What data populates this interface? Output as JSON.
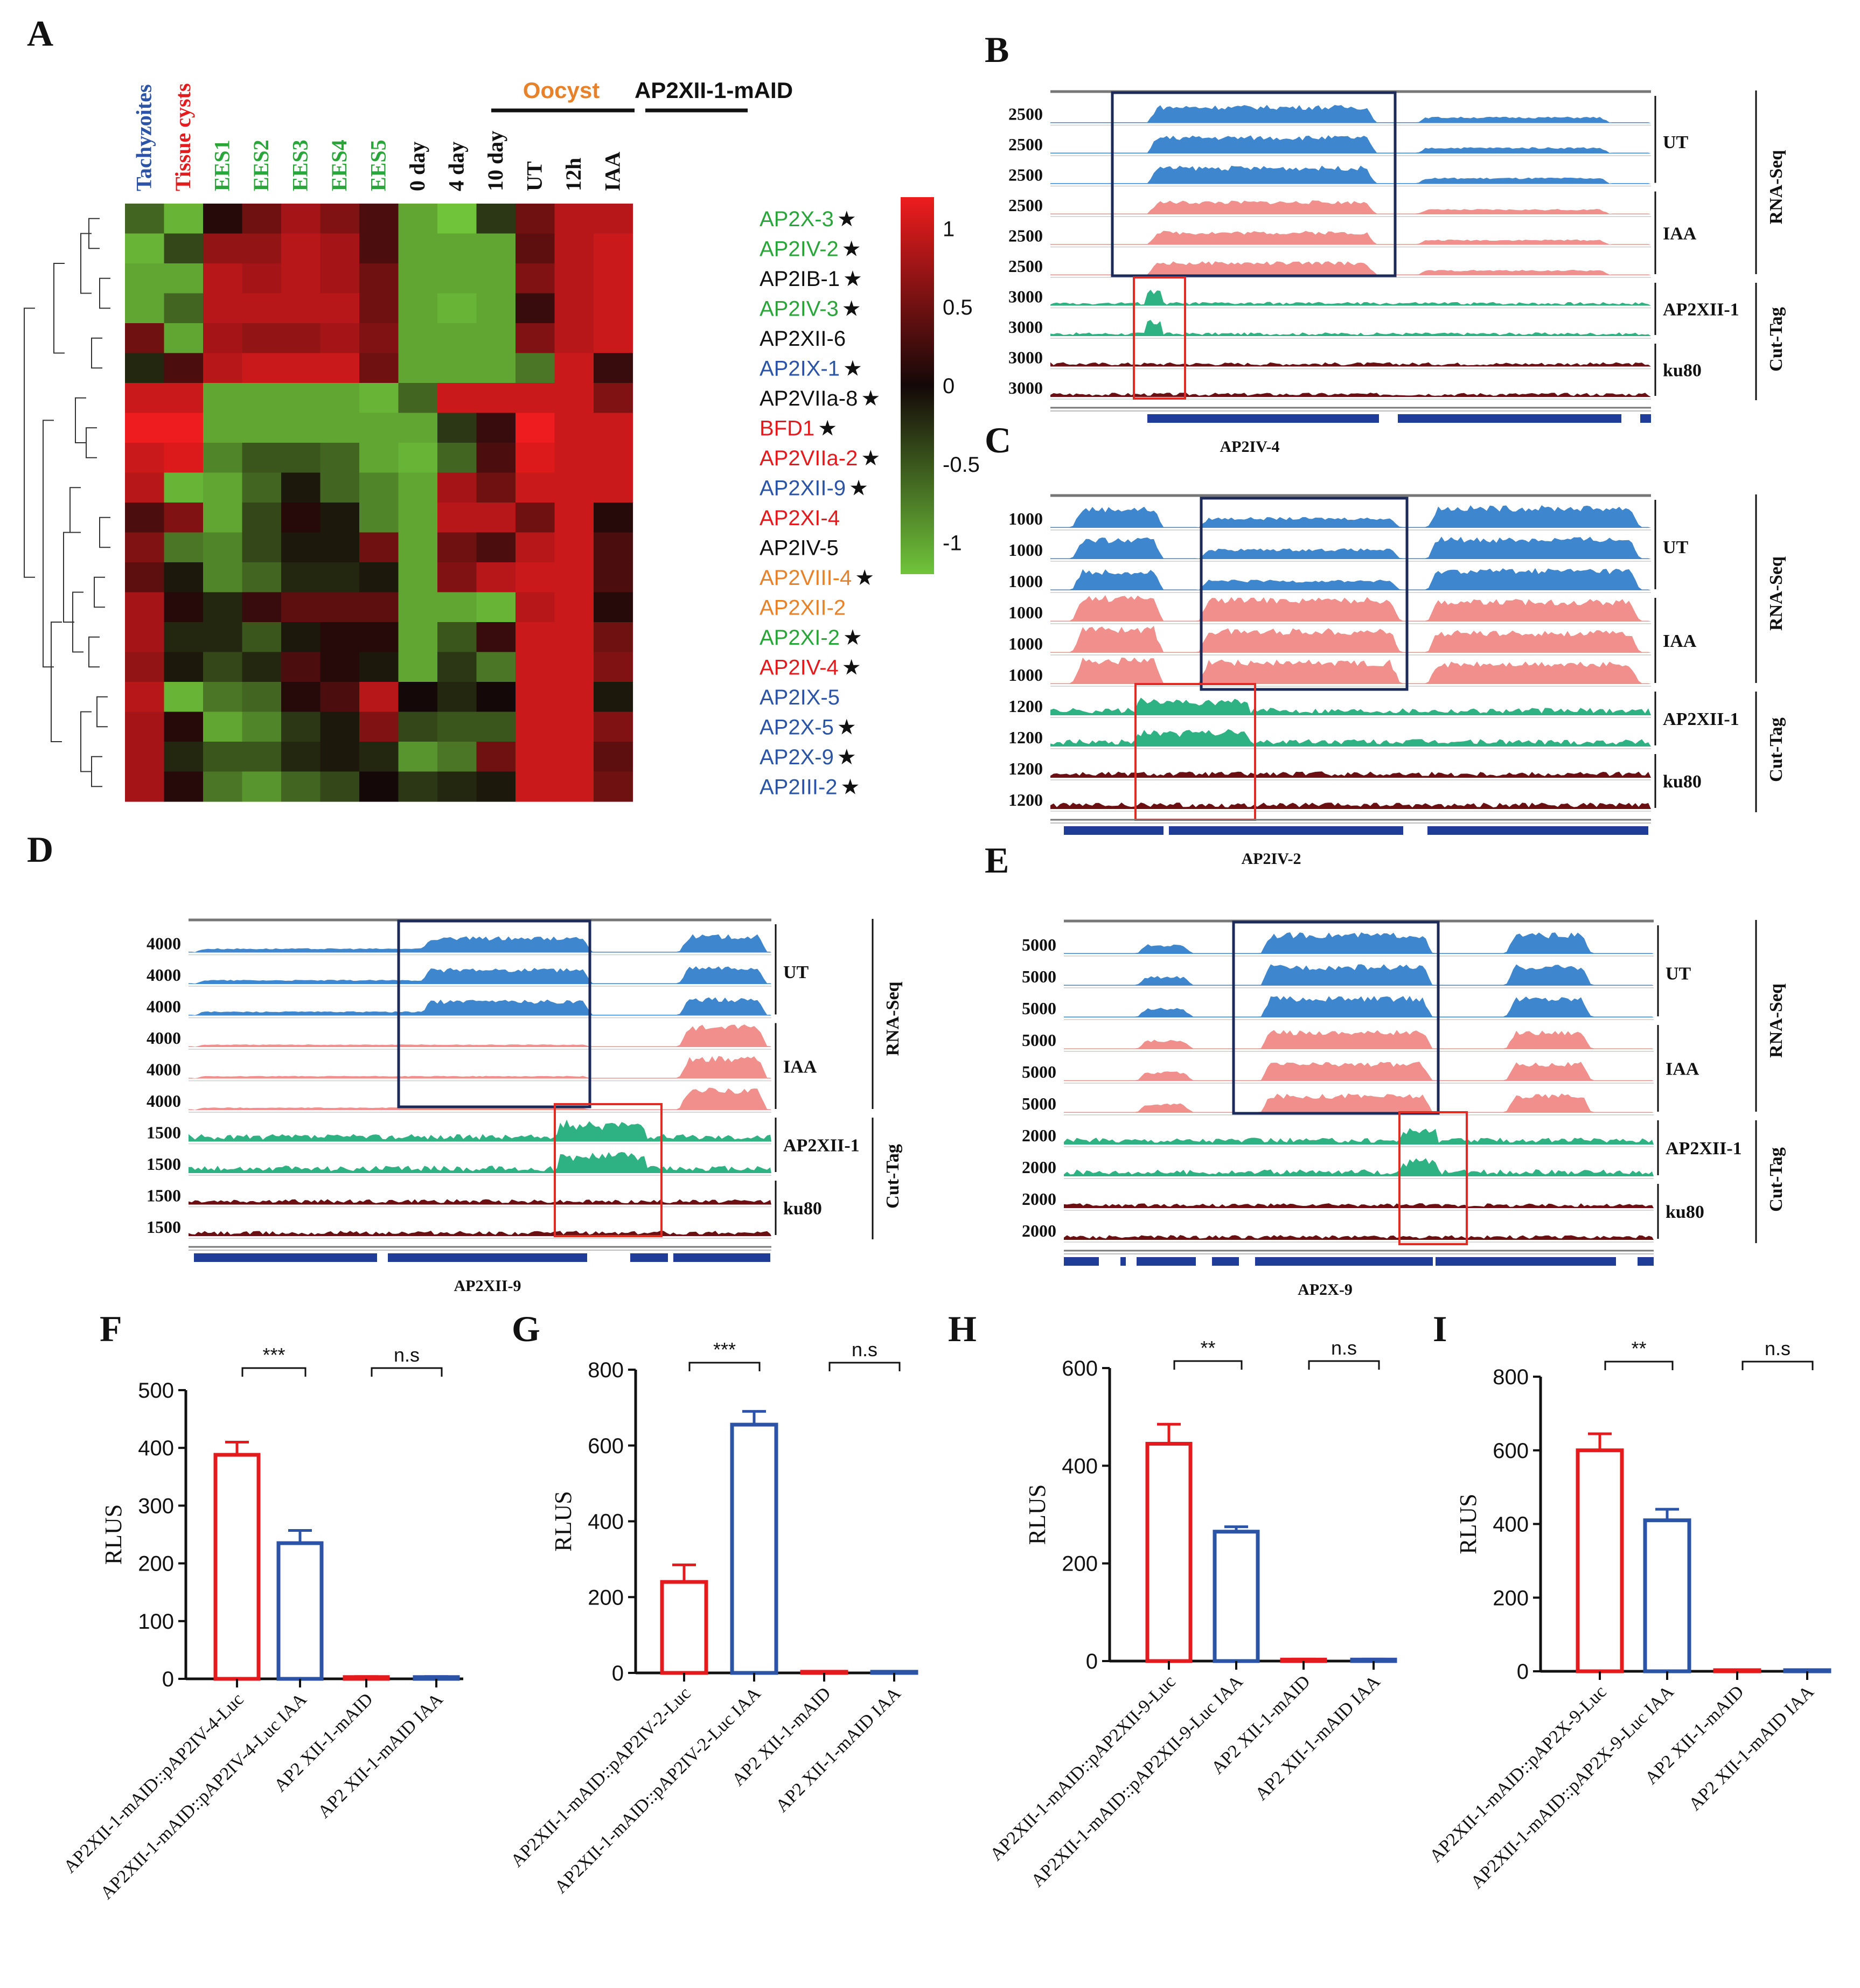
{
  "colors": {
    "red": "#e41a1c",
    "blue": "#2b54a6",
    "green": "#2aa53a",
    "orange": "#e8822a",
    "black": "#111111",
    "rna_ut": "#3e86cd",
    "rna_iaa": "#f08f8c",
    "cut_ap2": "#2fb283",
    "cut_ku80": "#6b0f13",
    "gene": "#1e3c98",
    "box_dark": "#1c2a5a",
    "box_red": "#e02c24"
  },
  "chart_data": [
    {
      "panel": "A",
      "type": "heatmap",
      "column_groups": [
        {
          "label": "Oocyst",
          "color": "#e8822a"
        },
        {
          "label": "AP2XII-1-mAID",
          "color": "#111111"
        }
      ],
      "columns": [
        {
          "label": "Tachyzoites",
          "color": "#2b54a6"
        },
        {
          "label": "Tissue cysts",
          "color": "#e41a1c"
        },
        {
          "label": "EES1",
          "color": "#2aa53a"
        },
        {
          "label": "EES2",
          "color": "#2aa53a"
        },
        {
          "label": "EES3",
          "color": "#2aa53a"
        },
        {
          "label": "EES4",
          "color": "#2aa53a"
        },
        {
          "label": "EES5",
          "color": "#2aa53a"
        },
        {
          "label": "0 day",
          "color": "#111111"
        },
        {
          "label": "4 day",
          "color": "#111111"
        },
        {
          "label": "10 day",
          "color": "#111111"
        },
        {
          "label": "UT",
          "color": "#111111"
        },
        {
          "label": "12h",
          "color": "#111111"
        },
        {
          "label": "IAA",
          "color": "#111111"
        }
      ],
      "rows": [
        {
          "label": "AP2X-3",
          "star": "★",
          "color": "#2aa53a",
          "values": [
            -0.6,
            -1.1,
            0.1,
            0.5,
            0.8,
            0.6,
            0.3,
            -1.0,
            -1.2,
            -0.3,
            0.5,
            0.9,
            0.9
          ]
        },
        {
          "label": "AP2IV-2",
          "star": "★",
          "color": "#2aa53a",
          "values": [
            -1.1,
            -0.4,
            0.7,
            0.7,
            0.9,
            0.8,
            0.3,
            -1.0,
            -1.0,
            -1.0,
            0.4,
            0.9,
            1.0
          ]
        },
        {
          "label": "AP2IB-1",
          "star": "★",
          "color": "#111111",
          "values": [
            -1.0,
            -1.0,
            0.9,
            0.8,
            0.9,
            0.8,
            0.5,
            -1.0,
            -1.0,
            -1.0,
            0.6,
            0.9,
            1.0
          ]
        },
        {
          "label": "AP2IV-3",
          "star": "★",
          "color": "#2aa53a",
          "values": [
            -1.0,
            -0.6,
            0.9,
            0.9,
            0.9,
            0.9,
            0.5,
            -1.0,
            -1.1,
            -1.0,
            0.2,
            0.9,
            1.0
          ]
        },
        {
          "label": "AP2XII-6",
          "star": "",
          "color": "#111111",
          "values": [
            0.5,
            -1.0,
            0.8,
            0.7,
            0.7,
            0.8,
            0.6,
            -1.0,
            -1.0,
            -1.0,
            0.6,
            0.9,
            1.0
          ]
        },
        {
          "label": "AP2IX-1",
          "star": "★",
          "color": "#2b54a6",
          "values": [
            -0.2,
            0.3,
            0.9,
            1.0,
            1.0,
            1.0,
            0.5,
            -1.0,
            -1.0,
            -1.0,
            -0.7,
            1.0,
            0.2
          ]
        },
        {
          "label": "AP2VIIa-8",
          "star": "★",
          "color": "#111111",
          "values": [
            1.0,
            1.0,
            -1.0,
            -1.0,
            -1.0,
            -1.0,
            -1.1,
            -0.6,
            1.0,
            1.0,
            1.0,
            1.0,
            0.6
          ]
        },
        {
          "label": "BFD1",
          "star": "★",
          "color": "#e41a1c",
          "values": [
            1.2,
            1.2,
            -1.0,
            -1.0,
            -1.0,
            -1.0,
            -1.0,
            -1.0,
            -0.3,
            0.2,
            1.2,
            1.0,
            1.0
          ]
        },
        {
          "label": "AP2VIIa-2",
          "star": "★",
          "color": "#e41a1c",
          "values": [
            1.0,
            1.1,
            -0.8,
            -0.5,
            -0.5,
            -0.6,
            -1.0,
            -1.1,
            -0.6,
            0.3,
            1.1,
            1.0,
            1.0
          ]
        },
        {
          "label": "AP2XII-9",
          "star": "★",
          "color": "#2b54a6",
          "values": [
            0.9,
            -1.1,
            -1.0,
            -0.6,
            -0.1,
            -0.6,
            -0.8,
            -1.0,
            0.8,
            0.5,
            1.0,
            1.0,
            1.0
          ]
        },
        {
          "label": "AP2XI-4",
          "star": "",
          "color": "#e41a1c",
          "values": [
            0.3,
            0.6,
            -1.0,
            -0.4,
            0.1,
            -0.1,
            -0.8,
            -1.0,
            0.9,
            0.9,
            0.5,
            1.0,
            0.1
          ]
        },
        {
          "label": "AP2IV-5",
          "star": "",
          "color": "#111111",
          "values": [
            0.6,
            -0.7,
            -0.8,
            -0.4,
            -0.1,
            -0.1,
            0.5,
            -1.0,
            0.5,
            0.3,
            0.9,
            1.0,
            0.3
          ]
        },
        {
          "label": "AP2VIII-4",
          "star": "★",
          "color": "#e8822a",
          "values": [
            0.4,
            -0.1,
            -0.8,
            -0.6,
            -0.2,
            -0.2,
            -0.1,
            -1.0,
            0.6,
            0.9,
            1.0,
            1.0,
            0.3
          ]
        },
        {
          "label": "AP2XII-2",
          "star": "",
          "color": "#e8822a",
          "values": [
            0.8,
            0.1,
            -0.2,
            0.2,
            0.4,
            0.4,
            0.4,
            -1.0,
            -1.0,
            -1.1,
            0.9,
            1.0,
            0.1
          ]
        },
        {
          "label": "AP2XI-2",
          "star": "★",
          "color": "#2aa53a",
          "values": [
            0.8,
            -0.2,
            -0.2,
            -0.5,
            -0.1,
            0.1,
            0.1,
            -1.0,
            -0.5,
            0.2,
            1.0,
            1.0,
            0.5
          ]
        },
        {
          "label": "AP2IV-4",
          "star": "★",
          "color": "#e41a1c",
          "values": [
            0.7,
            -0.1,
            -0.4,
            -0.2,
            0.3,
            0.1,
            -0.1,
            -1.0,
            -0.3,
            -0.7,
            1.0,
            1.0,
            0.6
          ]
        },
        {
          "label": "AP2IX-5",
          "star": "",
          "color": "#2b54a6",
          "values": [
            0.9,
            -1.1,
            -0.7,
            -0.6,
            0.1,
            0.3,
            0.9,
            0.0,
            -0.2,
            0.0,
            1.0,
            1.0,
            -0.1
          ]
        },
        {
          "label": "AP2X-5",
          "star": "★",
          "color": "#2b54a6",
          "values": [
            0.8,
            0.1,
            -1.0,
            -0.8,
            -0.3,
            -0.1,
            0.6,
            -0.4,
            -0.5,
            -0.5,
            1.0,
            1.0,
            0.6
          ]
        },
        {
          "label": "AP2X-9",
          "star": "★",
          "color": "#2b54a6",
          "values": [
            0.8,
            -0.2,
            -0.5,
            -0.5,
            -0.2,
            -0.1,
            -0.2,
            -0.9,
            -0.7,
            0.5,
            1.0,
            1.0,
            0.4
          ]
        },
        {
          "label": "AP2III-2",
          "star": "★",
          "color": "#2b54a6",
          "values": [
            0.8,
            0.1,
            -0.7,
            -0.9,
            -0.6,
            -0.4,
            0.0,
            -0.3,
            -0.2,
            -0.1,
            1.0,
            1.0,
            0.5
          ]
        }
      ],
      "scale_min": -1.2,
      "scale_max": 1.2,
      "legend_ticks": [
        "1",
        "0.5",
        "0",
        "-0.5",
        "-1"
      ],
      "legend_values": [
        1,
        0.5,
        0,
        -0.5,
        -1
      ]
    },
    {
      "panel": "B",
      "type": "area",
      "gene": "AP2IV-4",
      "rna_scales": [
        "2500",
        "2500",
        "2500",
        "2500",
        "2500",
        "2500"
      ],
      "cut_scales": [
        "3000",
        "3000",
        "3000",
        "3000"
      ],
      "groups": {
        "ut": "UT",
        "iaa": "IAA",
        "ap2": "AP2XII-1",
        "ku80": "ku80",
        "rna": "RNA-Seq",
        "cut": "Cut-Tag"
      }
    },
    {
      "panel": "C",
      "type": "area",
      "gene": "AP2IV-2",
      "rna_scales": [
        "1000",
        "1000",
        "1000",
        "1000",
        "1000",
        "1000"
      ],
      "cut_scales": [
        "1200",
        "1200",
        "1200",
        "1200"
      ],
      "groups": {
        "ut": "UT",
        "iaa": "IAA",
        "ap2": "AP2XII-1",
        "ku80": "ku80",
        "rna": "RNA-Seq",
        "cut": "Cut-Tag"
      }
    },
    {
      "panel": "D",
      "type": "area",
      "gene": "AP2XII-9",
      "rna_scales": [
        "4000",
        "4000",
        "4000",
        "4000",
        "4000",
        "4000"
      ],
      "cut_scales": [
        "1500",
        "1500",
        "1500",
        "1500"
      ],
      "groups": {
        "ut": "UT",
        "iaa": "IAA",
        "ap2": "AP2XII-1",
        "ku80": "ku80",
        "rna": "RNA-Seq",
        "cut": "Cut-Tag"
      }
    },
    {
      "panel": "E",
      "type": "area",
      "gene": "AP2X-9",
      "rna_scales": [
        "5000",
        "5000",
        "5000",
        "5000",
        "5000",
        "5000"
      ],
      "cut_scales": [
        "2000",
        "2000",
        "2000",
        "2000"
      ],
      "groups": {
        "ut": "UT",
        "iaa": "IAA",
        "ap2": "AP2XII-1",
        "ku80": "ku80",
        "rna": "RNA-Seq",
        "cut": "Cut-Tag"
      }
    },
    {
      "panel": "F",
      "type": "bar",
      "ylabel": "RLUS",
      "ylim": [
        0,
        500
      ],
      "yticks": [
        0,
        100,
        200,
        300,
        400,
        500
      ],
      "categories": [
        "AP2XII-1-mAID::pAP2IV-4-Luc",
        "AP2XII-1-mAID::pAP2IV-4-Luc IAA",
        "AP2 XII-1-mAID",
        "AP2 XII-1-mAID IAA"
      ],
      "values": [
        388,
        235,
        3,
        3
      ],
      "errors": [
        22,
        22,
        1,
        1
      ],
      "significance": [
        "***",
        "n.s"
      ]
    },
    {
      "panel": "G",
      "type": "bar",
      "ylabel": "RLUS",
      "ylim": [
        0,
        800
      ],
      "yticks": [
        0,
        200,
        400,
        600,
        800
      ],
      "categories": [
        "AP2XII-1-mAID::pAP2IV-2-Luc",
        "AP2XII-1-mAID::pAP2IV-2-Luc IAA",
        "AP2 XII-1-mAID",
        "AP2 XII-1-mAID IAA"
      ],
      "values": [
        240,
        655,
        3,
        3
      ],
      "errors": [
        45,
        35,
        1,
        1
      ],
      "significance": [
        "***",
        "n.s"
      ]
    },
    {
      "panel": "H",
      "type": "bar",
      "ylabel": "RLUS",
      "ylim": [
        0,
        600
      ],
      "yticks": [
        0,
        200,
        400,
        600
      ],
      "categories": [
        "AP2XII-1-mAID::pAP2XII-9-Luc",
        "AP2XII-1-mAID::pAP2XII-9-Luc IAA",
        "AP2 XII-1-mAID",
        "AP2 XII-1-mAID IAA"
      ],
      "values": [
        445,
        265,
        3,
        3
      ],
      "errors": [
        40,
        10,
        1,
        1
      ],
      "significance": [
        "**",
        "n.s"
      ]
    },
    {
      "panel": "I",
      "type": "bar",
      "ylabel": "RLUS",
      "ylim": [
        0,
        800
      ],
      "yticks": [
        0,
        200,
        400,
        600,
        800
      ],
      "categories": [
        "AP2XII-1-mAID::pAP2X-9-Luc",
        "AP2XII-1-mAID::pAP2X-9-Luc IAA",
        "AP2 XII-1-mAID",
        "AP2 XII-1-mAID IAA"
      ],
      "values": [
        600,
        410,
        3,
        3
      ],
      "errors": [
        45,
        30,
        1,
        1
      ],
      "significance": [
        "**",
        "n.s"
      ]
    }
  ]
}
